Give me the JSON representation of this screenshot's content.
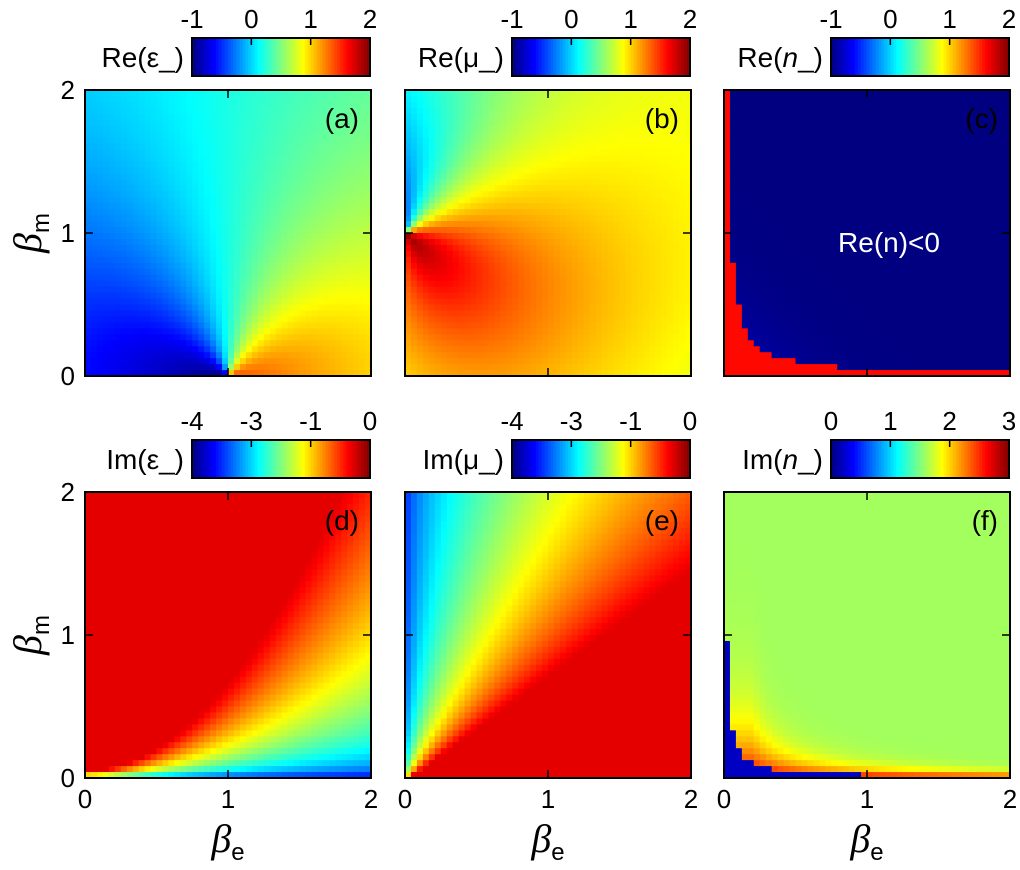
{
  "chart_data": [
    {
      "type": "heatmap",
      "panel_label": "(a)",
      "colorbar": {
        "label_main": "Re(ε_)",
        "label_italic": "",
        "label_close": "",
        "ticks": [
          "-1",
          "0",
          "1",
          "2"
        ],
        "range": [
          -1,
          2
        ]
      },
      "xlim": [
        0,
        2
      ],
      "ylim": [
        0,
        2
      ],
      "x_ticks": [],
      "y_ticks": [
        "0",
        "1",
        "2"
      ],
      "xlabel_main": "",
      "xlabel_sub": "",
      "ylabel_main": "β",
      "ylabel_sub": "m",
      "annotation": ""
    },
    {
      "type": "heatmap",
      "panel_label": "(b)",
      "colorbar": {
        "label_main": "Re(μ_)",
        "label_italic": "",
        "label_close": "",
        "ticks": [
          "-1",
          "0",
          "1",
          "2"
        ],
        "range": [
          -1,
          2
        ]
      },
      "xlim": [
        0,
        2
      ],
      "ylim": [
        0,
        2
      ],
      "x_ticks": [],
      "y_ticks": [],
      "xlabel_main": "",
      "xlabel_sub": "",
      "ylabel_main": "",
      "ylabel_sub": "",
      "annotation": ""
    },
    {
      "type": "heatmap",
      "panel_label": "(c)",
      "colorbar": {
        "label_main": "Re(",
        "label_italic": "n",
        "label_close": "_)",
        "ticks": [
          "-1",
          "0",
          "1",
          "2"
        ],
        "range": [
          -1,
          2
        ]
      },
      "xlim": [
        0,
        2
      ],
      "ylim": [
        0,
        2
      ],
      "x_ticks": [],
      "y_ticks": [],
      "xlabel_main": "",
      "xlabel_sub": "",
      "ylabel_main": "",
      "ylabel_sub": "",
      "annotation": "Re(n)<0"
    },
    {
      "type": "heatmap",
      "panel_label": "(d)",
      "colorbar": {
        "label_main": "Im(ε_)",
        "label_italic": "",
        "label_close": "",
        "ticks": [
          "-4",
          "-3",
          "-1",
          "0"
        ],
        "range": [
          -4,
          0
        ]
      },
      "xlim": [
        0,
        2
      ],
      "ylim": [
        0,
        2
      ],
      "x_ticks": [
        "0",
        "1",
        "2"
      ],
      "y_ticks": [
        "0",
        "1",
        "2"
      ],
      "xlabel_main": "β",
      "xlabel_sub": "e",
      "ylabel_main": "β",
      "ylabel_sub": "m",
      "annotation": ""
    },
    {
      "type": "heatmap",
      "panel_label": "(e)",
      "colorbar": {
        "label_main": "Im(μ_)",
        "label_italic": "",
        "label_close": "",
        "ticks": [
          "-4",
          "-3",
          "-1",
          "0"
        ],
        "range": [
          -4,
          0
        ]
      },
      "xlim": [
        0,
        2
      ],
      "ylim": [
        0,
        2
      ],
      "x_ticks": [
        "0",
        "1",
        "2"
      ],
      "y_ticks": [],
      "xlabel_main": "β",
      "xlabel_sub": "e",
      "ylabel_main": "",
      "ylabel_sub": "",
      "annotation": ""
    },
    {
      "type": "heatmap",
      "panel_label": "(f)",
      "colorbar": {
        "label_main": "Im(",
        "label_italic": "n",
        "label_close": "_)",
        "ticks": [
          "0",
          "1",
          "2",
          "3"
        ],
        "range": [
          0,
          3
        ]
      },
      "xlim": [
        0,
        2
      ],
      "ylim": [
        0,
        2
      ],
      "x_ticks": [
        "0",
        "1",
        "2"
      ],
      "y_ticks": [],
      "xlabel_main": "β",
      "xlabel_sub": "e",
      "ylabel_main": "",
      "ylabel_sub": "",
      "annotation": ""
    }
  ]
}
